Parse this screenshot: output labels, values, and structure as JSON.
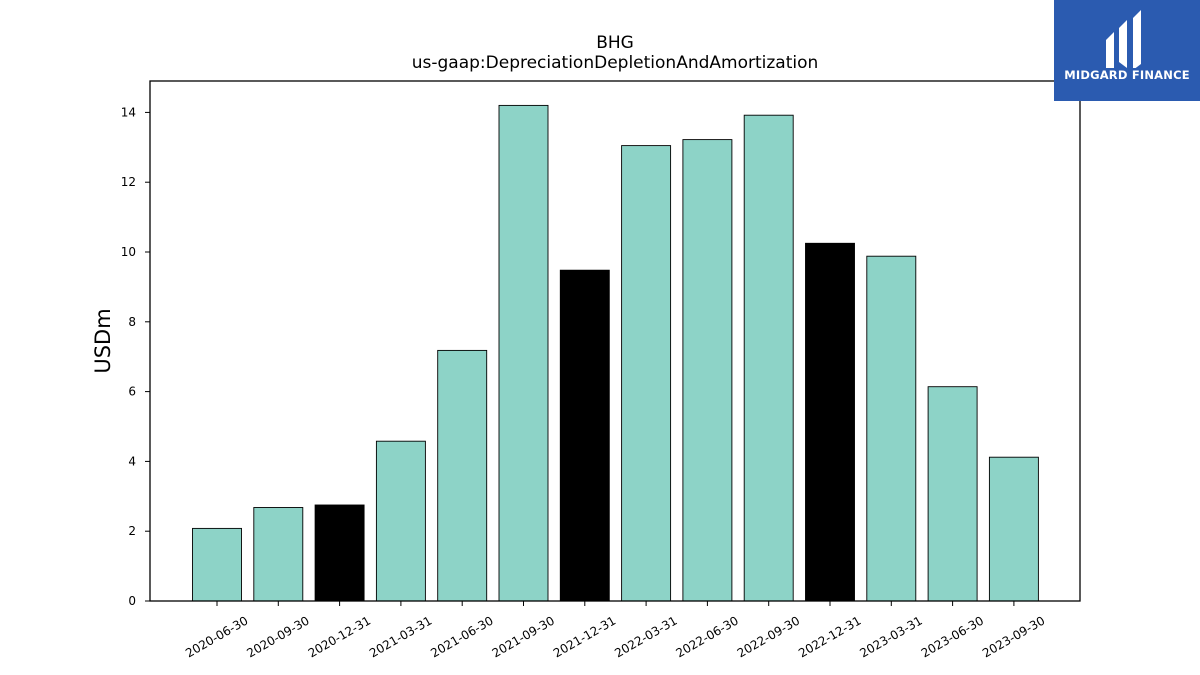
{
  "colors": {
    "normal": "#8dd3c7",
    "highlight": "#000000",
    "logo_bg": "#2b5bb0"
  },
  "logo": {
    "text": "MIDGARD FINANCE",
    "icon": "midgard-logo-icon"
  },
  "chart_data": {
    "type": "bar",
    "title": "BHG",
    "subtitle": "us-gaap:DepreciationDepletionAndAmortization",
    "xlabel": "",
    "ylabel": "USDm",
    "ylim": [
      0,
      14.9
    ],
    "yticks": [
      0,
      2,
      4,
      6,
      8,
      10,
      12,
      14
    ],
    "grid": false,
    "categories": [
      "2020-06-30",
      "2020-09-30",
      "2020-12-31",
      "2021-03-31",
      "2021-06-30",
      "2021-09-30",
      "2021-12-31",
      "2022-03-31",
      "2022-06-30",
      "2022-09-30",
      "2022-12-31",
      "2023-03-31",
      "2023-06-30",
      "2023-09-30"
    ],
    "values": [
      2.08,
      2.68,
      2.75,
      4.58,
      7.18,
      14.2,
      9.48,
      13.05,
      13.22,
      13.92,
      10.25,
      9.88,
      6.14,
      4.12
    ],
    "highlight": [
      false,
      false,
      true,
      false,
      false,
      false,
      true,
      false,
      false,
      false,
      true,
      false,
      false,
      false
    ]
  }
}
